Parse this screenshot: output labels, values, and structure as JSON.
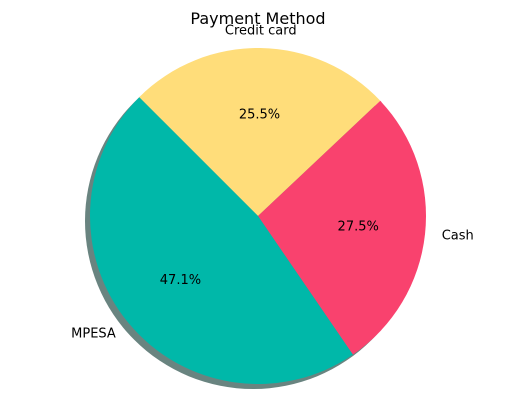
{
  "chart_data": {
    "type": "pie",
    "title": "Payment Method",
    "slices": [
      {
        "label": "Credit card",
        "value": 25.5,
        "pct_label": "25.5%",
        "color": "#ffdd7a"
      },
      {
        "label": "Cash",
        "value": 27.5,
        "pct_label": "27.5%",
        "color": "#f9426e"
      },
      {
        "label": "MPESA",
        "value": 47.1,
        "pct_label": "47.1%",
        "color": "#00b8a9"
      }
    ],
    "start_angle_deg": 135,
    "direction": "clockwise",
    "shadow": true,
    "shadow_color": "#4f6f6a"
  }
}
